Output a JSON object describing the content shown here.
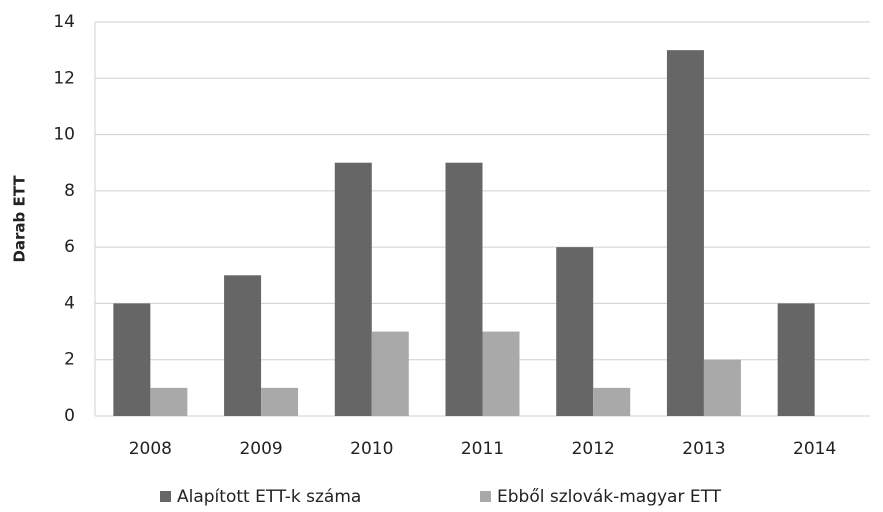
{
  "chart_data": {
    "type": "bar",
    "y_label": "Darab ETT",
    "categories": [
      "2008",
      "2009",
      "2010",
      "2011",
      "2012",
      "2013",
      "2014"
    ],
    "series": [
      {
        "name": "Alapított ETT-k száma",
        "color": "#666666",
        "values": [
          4,
          5,
          9,
          9,
          6,
          13,
          4
        ]
      },
      {
        "name": "Ebből szlovák-magyar ETT",
        "color": "#a9a9a9",
        "values": [
          1,
          1,
          3,
          3,
          1,
          2,
          0
        ]
      }
    ],
    "ylim": [
      0,
      14
    ],
    "yticks": [
      0,
      2,
      4,
      6,
      8,
      10,
      12,
      14
    ],
    "grid": true,
    "legend": "bottom"
  }
}
